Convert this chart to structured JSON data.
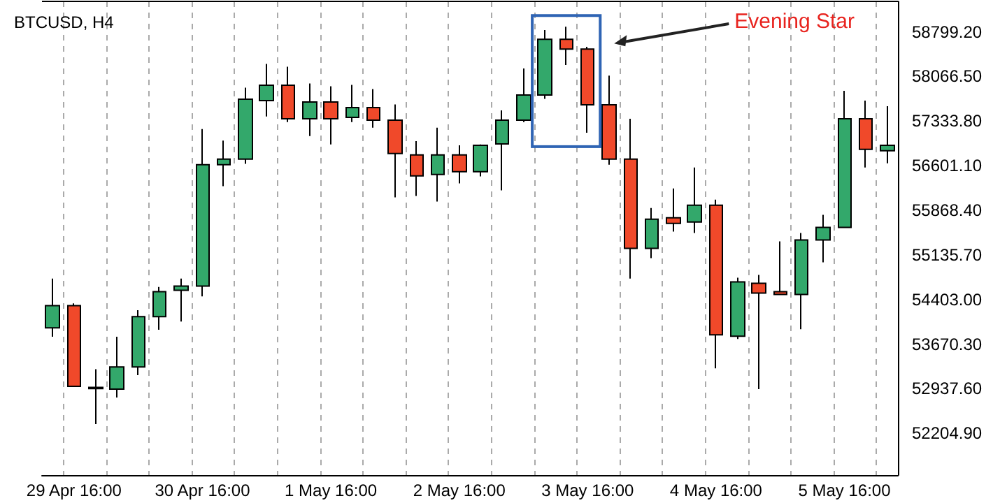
{
  "chart_data": {
    "type": "candlestick",
    "title": "BTCUSD, H4",
    "categories": [
      null,
      "29 Apr 16:00",
      null,
      null,
      null,
      null,
      null,
      "30 Apr 16:00",
      null,
      null,
      null,
      null,
      null,
      "1 May 16:00",
      null,
      null,
      null,
      null,
      null,
      "2 May 16:00",
      null,
      null,
      null,
      null,
      null,
      "3 May 16:00",
      null,
      null,
      null,
      null,
      null,
      "4 May 16:00",
      null,
      null,
      null,
      null,
      null,
      "5 May 16:00",
      null,
      null
    ],
    "ohlc": [
      [
        53938,
        54746,
        53792,
        54304
      ],
      [
        54304,
        54340,
        52976,
        52976
      ],
      [
        52960,
        53258,
        52358,
        52940
      ],
      [
        52930,
        53792,
        52793,
        53297
      ],
      [
        53297,
        54227,
        53160,
        54121
      ],
      [
        54121,
        54609,
        53906,
        54533
      ],
      [
        54556,
        54746,
        54043,
        54625
      ],
      [
        54625,
        57203,
        54456,
        56617
      ],
      [
        56617,
        57013,
        56264,
        56709
      ],
      [
        56709,
        57883,
        56631,
        57693
      ],
      [
        57670,
        58272,
        57409,
        57922
      ],
      [
        57922,
        58227,
        57318,
        57373
      ],
      [
        57373,
        57952,
        57089,
        57647
      ],
      [
        57647,
        57906,
        56951,
        57373
      ],
      [
        57395,
        57929,
        57318,
        57556
      ],
      [
        57556,
        57860,
        57226,
        57350
      ],
      [
        57350,
        57608,
        56081,
        56800
      ],
      [
        56777,
        57006,
        56104,
        56434
      ],
      [
        56457,
        57226,
        56012,
        56777
      ],
      [
        56777,
        56937,
        56310,
        56502
      ],
      [
        56502,
        56950,
        56425,
        56937
      ],
      [
        56960,
        57510,
        56196,
        57350
      ],
      [
        57350,
        58197,
        57318,
        57762
      ],
      [
        57762,
        58829,
        57700,
        58678
      ],
      [
        58678,
        58884,
        58256,
        58517
      ],
      [
        58517,
        58554,
        57144,
        57601
      ],
      [
        57601,
        58082,
        56617,
        56709
      ],
      [
        56709,
        57373,
        54746,
        55243
      ],
      [
        55243,
        55907,
        55083,
        55724
      ],
      [
        55747,
        56228,
        55518,
        55655
      ],
      [
        55678,
        56571,
        55495,
        55953
      ],
      [
        55953,
        56045,
        53274,
        53823
      ],
      [
        53801,
        54762,
        53755,
        54694
      ],
      [
        54671,
        54808,
        52930,
        54510
      ],
      [
        54533,
        55358,
        54487,
        54487
      ],
      [
        54487,
        55495,
        53915,
        55380
      ],
      [
        55380,
        55793,
        55014,
        55587
      ],
      [
        55587,
        57830,
        55587,
        57373
      ],
      [
        57373,
        57670,
        56571,
        56869
      ],
      [
        56846,
        57579,
        56640,
        56937
      ]
    ],
    "colors": [
      "#33a86b",
      "#f0492a",
      "#000000",
      "#33a86b",
      "#33a86b",
      "#33a86b",
      "#33a86b",
      "#33a86b",
      "#33a86b",
      "#33a86b",
      "#33a86b",
      "#f0492a",
      "#33a86b",
      "#f0492a",
      "#33a86b",
      "#f0492a",
      "#f0492a",
      "#f0492a",
      "#33a86b",
      "#f0492a",
      "#33a86b",
      "#33a86b",
      "#33a86b",
      "#33a86b",
      "#f0492a",
      "#f0492a",
      "#f0492a",
      "#f0492a",
      "#33a86b",
      "#f0492a",
      "#33a86b",
      "#f0492a",
      "#33a86b",
      "#f0492a",
      "#f0492a",
      "#33a86b",
      "#33a86b",
      "#33a86b",
      "#f0492a",
      "#33a86b"
    ],
    "ylim": [
      51520,
      59300
    ],
    "yticks": [
      {
        "value": 52204.9,
        "label": "52204.90"
      },
      {
        "value": 52937.6,
        "label": "52937.60"
      },
      {
        "value": 53670.3,
        "label": "53670.30"
      },
      {
        "value": 54403,
        "label": "54403.00"
      },
      {
        "value": 55135.7,
        "label": "55135.70"
      },
      {
        "value": 55868.4,
        "label": "55868.40"
      },
      {
        "value": 56601.1,
        "label": "56601.10"
      },
      {
        "value": 57333.8,
        "label": "57333.80"
      },
      {
        "value": 58066.5,
        "label": "58066.50"
      },
      {
        "value": 58799.2,
        "label": "58799.20"
      }
    ],
    "grid": "x",
    "annotations": [
      "Evening Star"
    ]
  }
}
